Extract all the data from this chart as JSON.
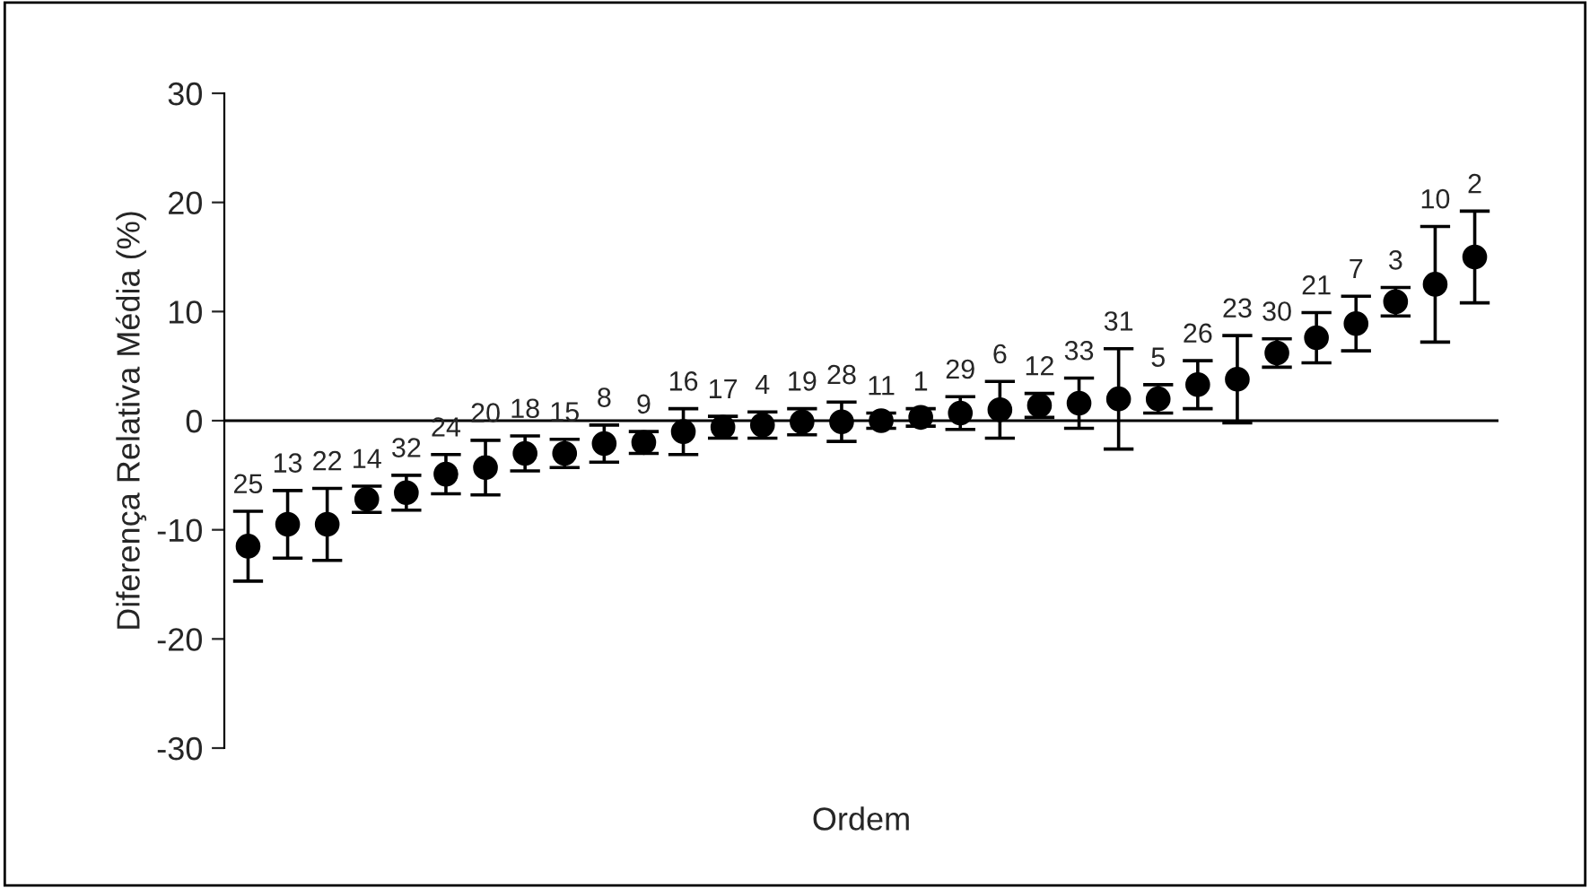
{
  "chart_data": {
    "type": "scatter",
    "xlabel": "Ordem",
    "ylabel": "Diferença Relativa Média (%)",
    "categories": [
      null,
      null,
      null,
      null,
      null,
      null,
      null,
      null,
      null,
      null,
      null,
      null,
      null,
      null,
      null,
      null,
      null,
      null,
      null,
      null,
      null,
      null,
      null,
      null,
      null,
      null,
      null,
      null,
      null,
      null,
      null,
      null
    ],
    "series": [
      {
        "color": "#000000",
        "values": [
          -11.5,
          -9.5,
          -9.5,
          -7.2,
          -6.6,
          -4.9,
          -4.3,
          -3.0,
          -3.0,
          -2.1,
          -2.0,
          -1.0,
          -0.6,
          -0.4,
          -0.1,
          -0.1,
          0.0,
          0.3,
          0.7,
          1.0,
          1.4,
          1.6,
          2.0,
          2.0,
          3.3,
          3.8,
          6.2,
          7.6,
          8.9,
          10.9,
          12.5,
          15.0
        ],
        "errors": [
          3.2,
          3.1,
          3.3,
          1.2,
          1.6,
          1.8,
          2.5,
          1.6,
          1.3,
          1.7,
          1.0,
          2.1,
          1.0,
          1.2,
          1.2,
          1.8,
          0.7,
          0.8,
          1.5,
          2.6,
          1.1,
          2.3,
          4.6,
          1.3,
          2.2,
          4.0,
          1.3,
          2.3,
          2.5,
          1.3,
          5.3,
          4.2
        ]
      }
    ],
    "annotations": [
      {
        "text": "25",
        "y": -8.3
      },
      {
        "text": "13",
        "y": -6.4
      },
      {
        "text": "22",
        "y": -6.2
      },
      {
        "text": "14",
        "y": -6.0
      },
      {
        "text": "32",
        "y": -5.0
      },
      {
        "text": "24",
        "y": -3.1
      },
      {
        "text": "20",
        "y": -1.8
      },
      {
        "text": "18",
        "y": -1.4
      },
      {
        "text": "15",
        "y": -1.7
      },
      {
        "text": "8",
        "y": -0.4
      },
      {
        "text": "9",
        "y": -1.0
      },
      {
        "text": "16",
        "y": 1.1
      },
      {
        "text": "17",
        "y": 0.4
      },
      {
        "text": "4",
        "y": 0.8
      },
      {
        "text": "19",
        "y": 1.1
      },
      {
        "text": "28",
        "y": 1.7
      },
      {
        "text": "11",
        "y": 0.7
      },
      {
        "text": "1",
        "y": 1.1
      },
      {
        "text": "29",
        "y": 2.2
      },
      {
        "text": "6",
        "y": 3.6
      },
      {
        "text": "12",
        "y": 2.5
      },
      {
        "text": "33",
        "y": 3.9
      },
      {
        "text": "31",
        "y": 6.6
      },
      {
        "text": "5",
        "y": 3.3
      },
      {
        "text": "26",
        "y": 5.5
      },
      {
        "text": "23",
        "y": 7.8
      },
      {
        "text": "30",
        "y": 7.5
      },
      {
        "text": "21",
        "y": 9.9
      },
      {
        "text": "7",
        "y": 11.4
      },
      {
        "text": "3",
        "y": 12.2
      },
      {
        "text": "10",
        "y": 17.8
      },
      {
        "text": "2",
        "y": 19.2
      }
    ],
    "ylim": [
      -30,
      30
    ],
    "yticks": [
      -30,
      -20,
      -10,
      0,
      10,
      20,
      30
    ],
    "ref_lines": [
      {
        "axis": "y",
        "value": 0,
        "color": "#000000"
      }
    ],
    "marker": "circle",
    "grid": false,
    "legend": false
  }
}
